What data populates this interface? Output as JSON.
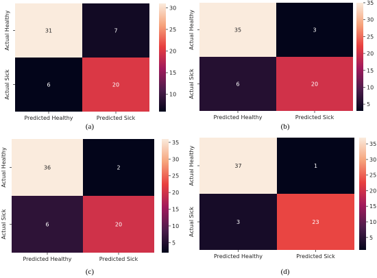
{
  "chart_data": [
    {
      "type": "heatmap",
      "caption": "(a)",
      "row_labels": [
        "Actual Healthy",
        "Actual Sick"
      ],
      "col_labels": [
        "Predicted Healthy",
        "Predicted Sick"
      ],
      "values": [
        [
          31,
          7
        ],
        [
          6,
          20
        ]
      ],
      "colorbar_ticks": [
        10,
        15,
        20,
        25,
        30
      ],
      "colorbar_range": [
        6,
        31
      ]
    },
    {
      "type": "heatmap",
      "caption": "(b)",
      "row_labels": [
        "Actual Healthy",
        "Actual Sick"
      ],
      "col_labels": [
        "Predicted Healthy",
        "Predicted Sick"
      ],
      "values": [
        [
          35,
          3
        ],
        [
          6,
          20
        ]
      ],
      "colorbar_ticks": [
        5,
        10,
        15,
        20,
        25,
        30,
        35
      ],
      "colorbar_range": [
        3,
        35
      ]
    },
    {
      "type": "heatmap",
      "caption": "(c)",
      "row_labels": [
        "Actual Healthy",
        "Actual Sick"
      ],
      "col_labels": [
        "Predicted Healthy",
        "Predicted Sick"
      ],
      "values": [
        [
          36,
          2
        ],
        [
          6,
          20
        ]
      ],
      "colorbar_ticks": [
        5,
        10,
        15,
        20,
        25,
        30,
        35
      ],
      "colorbar_range": [
        2,
        36
      ]
    },
    {
      "type": "heatmap",
      "caption": "(d)",
      "row_labels": [
        "Actual Healthy",
        "Actual Sick"
      ],
      "col_labels": [
        "Predicted Healthy",
        "Predicted Sick"
      ],
      "values": [
        [
          37,
          1
        ],
        [
          3,
          23
        ]
      ],
      "colorbar_ticks": [
        5,
        10,
        15,
        20,
        25,
        30,
        35
      ],
      "colorbar_range": [
        1,
        37
      ]
    }
  ],
  "colormap": [
    "#03051a",
    "#4c1d4b",
    "#a11a5b",
    "#e83f3f",
    "#f6a47c",
    "#faebdd"
  ]
}
